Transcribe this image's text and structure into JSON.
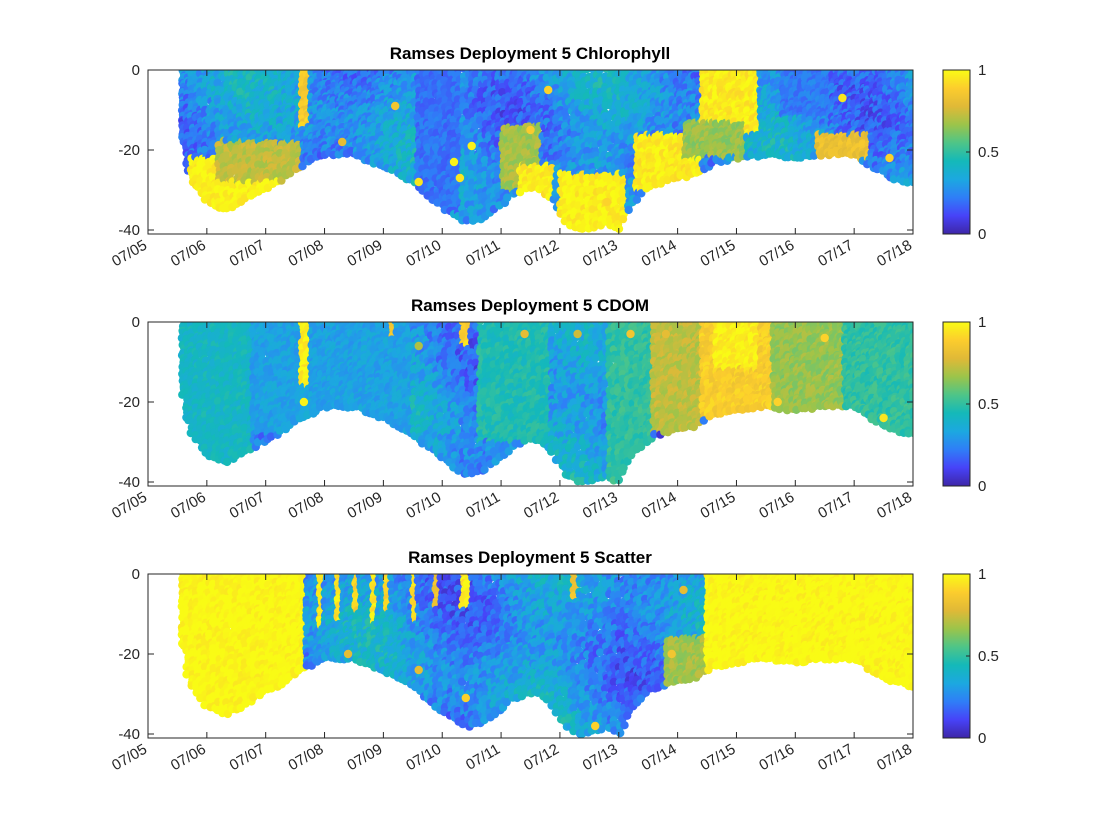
{
  "colormap": [
    "#3e26a8",
    "#4743f8",
    "#2f7ef7",
    "#1ca8e0",
    "#14b9b9",
    "#4ec588",
    "#9cc44a",
    "#e0b937",
    "#fccd2d",
    "#f9fb15"
  ],
  "chart_data": [
    {
      "type": "scatter",
      "title": "Ramses Deployment 5 Chlorophyll",
      "xlabel": "",
      "ylabel": "",
      "x_ticks": [
        "07/05",
        "07/06",
        "07/07",
        "07/08",
        "07/09",
        "07/10",
        "07/11",
        "07/12",
        "07/13",
        "07/14",
        "07/15",
        "07/16",
        "07/17",
        "07/18"
      ],
      "xlim": [
        "2021-07-05",
        "2021-07-18"
      ],
      "ylim": [
        -41,
        0
      ],
      "y_ticks": [
        0,
        -20,
        -40
      ],
      "colorbar": {
        "clim": [
          0,
          1
        ],
        "ticks": [
          "0",
          "0.5",
          "1"
        ]
      },
      "bottom_depth": [
        [
          5.6,
          -18
        ],
        [
          5.7,
          -27
        ],
        [
          6.0,
          -33
        ],
        [
          6.3,
          -35
        ],
        [
          6.6,
          -33
        ],
        [
          6.9,
          -30
        ],
        [
          7.2,
          -28
        ],
        [
          7.6,
          -24
        ],
        [
          8.0,
          -21
        ],
        [
          8.5,
          -21
        ],
        [
          9.0,
          -24
        ],
        [
          9.5,
          -28
        ],
        [
          9.9,
          -33
        ],
        [
          10.2,
          -36
        ],
        [
          10.4,
          -38
        ],
        [
          10.7,
          -37
        ],
        [
          10.9,
          -35
        ],
        [
          11.2,
          -31
        ],
        [
          11.6,
          -29
        ],
        [
          11.9,
          -33
        ],
        [
          12.1,
          -38
        ],
        [
          12.4,
          -40
        ],
        [
          12.8,
          -38
        ],
        [
          13.0,
          -40
        ],
        [
          13.2,
          -34
        ],
        [
          13.5,
          -29
        ],
        [
          13.9,
          -27
        ],
        [
          14.3,
          -26
        ],
        [
          14.6,
          -23
        ],
        [
          15.0,
          -22
        ],
        [
          15.5,
          -21
        ],
        [
          16.0,
          -22
        ],
        [
          16.5,
          -21
        ],
        [
          17.0,
          -21
        ],
        [
          17.4,
          -25
        ],
        [
          17.7,
          -27
        ],
        [
          18.0,
          -28
        ]
      ],
      "features": [
        {
          "x0": 5.7,
          "x1": 7.4,
          "d0": -22,
          "d1": -36,
          "value": 0.98
        },
        {
          "x0": 6.2,
          "x1": 7.6,
          "d0": -18,
          "d1": -28,
          "value": 0.72
        },
        {
          "x0": 11.0,
          "x1": 11.7,
          "d0": -14,
          "d1": -30,
          "value": 0.68
        },
        {
          "x0": 11.3,
          "x1": 11.9,
          "d0": -24,
          "d1": -32,
          "value": 0.96
        },
        {
          "x0": 12.0,
          "x1": 13.1,
          "d0": -26,
          "d1": -40,
          "value": 0.97
        },
        {
          "x0": 13.3,
          "x1": 14.4,
          "d0": -16,
          "d1": -30,
          "value": 0.96
        },
        {
          "x0": 14.4,
          "x1": 15.4,
          "d0": 0,
          "d1": -16,
          "value": 0.96
        },
        {
          "x0": 14.1,
          "x1": 15.2,
          "d0": -13,
          "d1": -22,
          "value": 0.66
        },
        {
          "x0": 16.4,
          "x1": 17.3,
          "d0": -16,
          "d1": -22,
          "value": 0.82
        },
        {
          "x0": 7.6,
          "x1": 7.72,
          "d0": 0,
          "d1": -14,
          "value": 0.88
        },
        {
          "x0": 9.6,
          "x1": 10.3,
          "d0": 0,
          "d1": -36,
          "value": 0.2
        },
        {
          "x0": 15.8,
          "x1": 16.6,
          "d0": 0,
          "d1": -12,
          "value": 0.22
        }
      ],
      "scattered_highlights": [
        [
          10.2,
          -23,
          0.98
        ],
        [
          10.5,
          -19,
          0.98
        ],
        [
          9.6,
          -28,
          0.95
        ],
        [
          10.3,
          -27,
          0.95
        ],
        [
          8.3,
          -18,
          0.8
        ],
        [
          9.2,
          -9,
          0.85
        ],
        [
          16.8,
          -7,
          0.95
        ],
        [
          12.5,
          -30,
          0.98
        ],
        [
          12.8,
          -33,
          0.9
        ],
        [
          11.5,
          -15,
          0.88
        ],
        [
          11.8,
          -5,
          0.9
        ],
        [
          17.6,
          -22,
          0.9
        ]
      ]
    },
    {
      "type": "scatter",
      "title": "Ramses Deployment 5 CDOM",
      "xlabel": "",
      "ylabel": "",
      "x_ticks": [
        "07/05",
        "07/06",
        "07/07",
        "07/08",
        "07/09",
        "07/10",
        "07/11",
        "07/12",
        "07/13",
        "07/14",
        "07/15",
        "07/16",
        "07/17",
        "07/18"
      ],
      "xlim": [
        "2021-07-05",
        "2021-07-18"
      ],
      "ylim": [
        -41,
        0
      ],
      "y_ticks": [
        0,
        -20,
        -40
      ],
      "colorbar": {
        "clim": [
          0,
          1
        ],
        "ticks": [
          "0",
          "0.5",
          "1"
        ]
      },
      "bottom_depth": [
        [
          5.6,
          -18
        ],
        [
          5.7,
          -27
        ],
        [
          6.0,
          -33
        ],
        [
          6.3,
          -35
        ],
        [
          6.6,
          -33
        ],
        [
          6.9,
          -30
        ],
        [
          7.2,
          -28
        ],
        [
          7.6,
          -24
        ],
        [
          8.0,
          -21
        ],
        [
          8.5,
          -21
        ],
        [
          9.0,
          -24
        ],
        [
          9.5,
          -28
        ],
        [
          9.9,
          -33
        ],
        [
          10.2,
          -36
        ],
        [
          10.4,
          -38
        ],
        [
          10.7,
          -37
        ],
        [
          10.9,
          -35
        ],
        [
          11.2,
          -31
        ],
        [
          11.6,
          -29
        ],
        [
          11.9,
          -33
        ],
        [
          12.1,
          -38
        ],
        [
          12.4,
          -40
        ],
        [
          12.8,
          -38
        ],
        [
          13.0,
          -40
        ],
        [
          13.2,
          -34
        ],
        [
          13.5,
          -29
        ],
        [
          13.9,
          -27
        ],
        [
          14.3,
          -26
        ],
        [
          14.6,
          -23
        ],
        [
          15.0,
          -22
        ],
        [
          15.5,
          -21
        ],
        [
          16.0,
          -22
        ],
        [
          16.5,
          -21
        ],
        [
          17.0,
          -21
        ],
        [
          17.4,
          -25
        ],
        [
          17.7,
          -27
        ],
        [
          18.0,
          -28
        ]
      ],
      "features": [
        {
          "x0": 5.6,
          "x1": 6.8,
          "d0": 0,
          "d1": -36,
          "value": 0.42
        },
        {
          "x0": 6.8,
          "x1": 9.5,
          "d0": 0,
          "d1": -28,
          "value": 0.32
        },
        {
          "x0": 10.6,
          "x1": 11.8,
          "d0": 0,
          "d1": -30,
          "value": 0.46
        },
        {
          "x0": 12.8,
          "x1": 13.6,
          "d0": 0,
          "d1": -40,
          "value": 0.5
        },
        {
          "x0": 13.6,
          "x1": 14.4,
          "d0": 0,
          "d1": -28,
          "value": 0.72
        },
        {
          "x0": 14.4,
          "x1": 15.6,
          "d0": 0,
          "d1": -24,
          "value": 0.88
        },
        {
          "x0": 14.6,
          "x1": 15.4,
          "d0": 0,
          "d1": -12,
          "value": 0.97
        },
        {
          "x0": 15.6,
          "x1": 16.8,
          "d0": 0,
          "d1": -22,
          "value": 0.66
        },
        {
          "x0": 16.8,
          "x1": 18.0,
          "d0": 0,
          "d1": -28,
          "value": 0.5
        },
        {
          "x0": 7.6,
          "x1": 7.72,
          "d0": 0,
          "d1": -16,
          "value": 0.97
        },
        {
          "x0": 10.35,
          "x1": 10.45,
          "d0": 0,
          "d1": -6,
          "value": 0.9
        },
        {
          "x0": 9.1,
          "x1": 9.2,
          "d0": 0,
          "d1": -4,
          "value": 0.85
        }
      ],
      "scattered_highlights": [
        [
          13.2,
          -3,
          0.85
        ],
        [
          13.8,
          -3,
          0.8
        ],
        [
          16.5,
          -4,
          0.9
        ],
        [
          17.5,
          -24,
          0.95
        ],
        [
          15.2,
          -17,
          0.9
        ],
        [
          15.7,
          -20,
          0.9
        ],
        [
          11.4,
          -3,
          0.8
        ],
        [
          12.3,
          -3,
          0.75
        ],
        [
          7.65,
          -20,
          0.98
        ],
        [
          9.6,
          -6,
          0.7
        ]
      ]
    },
    {
      "type": "scatter",
      "title": "Ramses Deployment 5 Scatter",
      "xlabel": "",
      "ylabel": "",
      "x_ticks": [
        "07/05",
        "07/06",
        "07/07",
        "07/08",
        "07/09",
        "07/10",
        "07/11",
        "07/12",
        "07/13",
        "07/14",
        "07/15",
        "07/16",
        "07/17",
        "07/18"
      ],
      "xlim": [
        "2021-07-05",
        "2021-07-18"
      ],
      "ylim": [
        -41,
        0
      ],
      "y_ticks": [
        0,
        -20,
        -40
      ],
      "colorbar": {
        "clim": [
          0,
          1
        ],
        "ticks": [
          "0",
          "0.5",
          "1"
        ]
      },
      "bottom_depth": [
        [
          5.6,
          -18
        ],
        [
          5.7,
          -27
        ],
        [
          6.0,
          -33
        ],
        [
          6.3,
          -35
        ],
        [
          6.6,
          -33
        ],
        [
          6.9,
          -30
        ],
        [
          7.2,
          -28
        ],
        [
          7.6,
          -24
        ],
        [
          8.0,
          -21
        ],
        [
          8.5,
          -21
        ],
        [
          9.0,
          -24
        ],
        [
          9.5,
          -28
        ],
        [
          9.9,
          -33
        ],
        [
          10.2,
          -36
        ],
        [
          10.4,
          -38
        ],
        [
          10.7,
          -37
        ],
        [
          10.9,
          -35
        ],
        [
          11.2,
          -31
        ],
        [
          11.6,
          -29
        ],
        [
          11.9,
          -33
        ],
        [
          12.1,
          -38
        ],
        [
          12.4,
          -40
        ],
        [
          12.8,
          -38
        ],
        [
          13.0,
          -40
        ],
        [
          13.2,
          -34
        ],
        [
          13.5,
          -29
        ],
        [
          13.9,
          -27
        ],
        [
          14.3,
          -26
        ],
        [
          14.6,
          -23
        ],
        [
          15.0,
          -22
        ],
        [
          15.5,
          -21
        ],
        [
          16.0,
          -22
        ],
        [
          16.5,
          -21
        ],
        [
          17.0,
          -21
        ],
        [
          17.4,
          -25
        ],
        [
          17.7,
          -27
        ],
        [
          18.0,
          -28
        ]
      ],
      "features": [
        {
          "x0": 5.6,
          "x1": 7.7,
          "d0": 0,
          "d1": -36,
          "value": 1.0
        },
        {
          "x0": 14.5,
          "x1": 18.0,
          "d0": 0,
          "d1": -29,
          "value": 1.0
        },
        {
          "x0": 13.8,
          "x1": 14.5,
          "d0": -16,
          "d1": -28,
          "value": 0.68
        },
        {
          "x0": 7.9,
          "x1": 7.98,
          "d0": 0,
          "d1": -14,
          "value": 0.95
        },
        {
          "x0": 8.2,
          "x1": 8.28,
          "d0": 0,
          "d1": -12,
          "value": 0.95
        },
        {
          "x0": 8.5,
          "x1": 8.58,
          "d0": 0,
          "d1": -10,
          "value": 0.9
        },
        {
          "x0": 8.8,
          "x1": 8.9,
          "d0": 0,
          "d1": -12,
          "value": 0.95
        },
        {
          "x0": 9.05,
          "x1": 9.15,
          "d0": 0,
          "d1": -10,
          "value": 0.9
        },
        {
          "x0": 9.5,
          "x1": 9.6,
          "d0": 0,
          "d1": -12,
          "value": 0.92
        },
        {
          "x0": 10.35,
          "x1": 10.45,
          "d0": 0,
          "d1": -8,
          "value": 0.95
        },
        {
          "x0": 12.2,
          "x1": 12.28,
          "d0": 0,
          "d1": -6,
          "value": 0.85
        },
        {
          "x0": 9.9,
          "x1": 9.98,
          "d0": 0,
          "d1": -8,
          "value": 0.85
        }
      ],
      "scattered_highlights": [
        [
          10.4,
          -31,
          0.9
        ],
        [
          8.4,
          -20,
          0.8
        ],
        [
          9.6,
          -24,
          0.8
        ],
        [
          12.6,
          -38,
          0.9
        ],
        [
          14.1,
          -4,
          0.8
        ],
        [
          13.9,
          -20,
          0.85
        ]
      ]
    }
  ]
}
